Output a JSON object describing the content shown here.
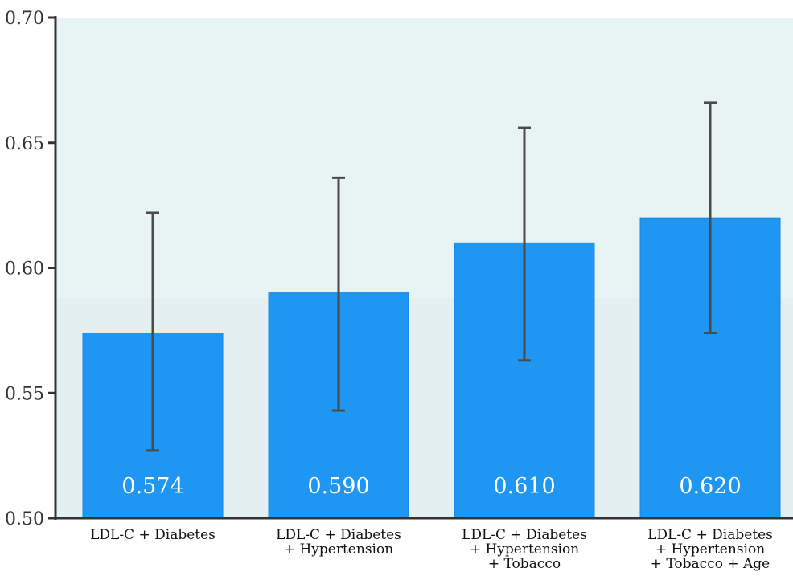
{
  "chart_data": {
    "type": "bar",
    "categories": [
      [
        "LDL-C + Diabetes"
      ],
      [
        "LDL-C + Diabetes",
        "+ Hypertension"
      ],
      [
        "LDL-C + Diabetes",
        "+ Hypertension",
        "+ Tobacco"
      ],
      [
        "LDL-C + Diabetes",
        "+ Hypertension",
        "+ Tobacco + Age"
      ]
    ],
    "values": [
      0.574,
      0.59,
      0.61,
      0.62
    ],
    "error_low": [
      0.527,
      0.543,
      0.563,
      0.574
    ],
    "error_high": [
      0.622,
      0.636,
      0.656,
      0.666
    ],
    "value_labels": [
      "0.574",
      "0.590",
      "0.610",
      "0.620"
    ],
    "yticks": [
      "0.50",
      "0.55",
      "0.60",
      "0.65",
      "0.70"
    ],
    "ylim": [
      0.5,
      0.7
    ],
    "title": "",
    "xlabel": "",
    "ylabel": "",
    "grid": false,
    "colors": {
      "bar": "#1f97f2",
      "bar_edge": "#1782dc",
      "error_bar": "#4a4a4a",
      "plot_background_top": "#e8f3f3",
      "plot_background_bottom": "#e3eff0",
      "axis": "#333333"
    }
  }
}
